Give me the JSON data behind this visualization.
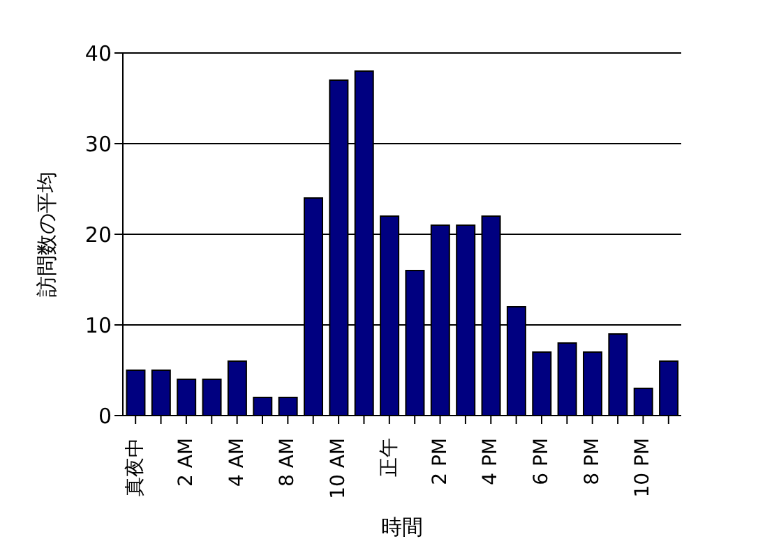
{
  "chart_data": {
    "type": "bar",
    "xlabel": "時間",
    "ylabel": "訪問数の平均",
    "categories": [
      "真夜中",
      null,
      "2 AM",
      null,
      "4 AM",
      null,
      "8 AM",
      null,
      "10 AM",
      null,
      "正午",
      null,
      "2 PM",
      null,
      "4 PM",
      null,
      "6 PM",
      null,
      "8 PM",
      null,
      "10 PM",
      null
    ],
    "values": [
      5,
      5,
      4,
      4,
      6,
      2,
      2,
      24,
      37,
      38,
      22,
      16,
      21,
      21,
      22,
      12,
      7,
      8,
      7,
      9,
      3,
      6
    ],
    "color": "#000080",
    "ylim": [
      0,
      40
    ],
    "yticks": [
      0,
      10,
      20,
      30,
      40
    ],
    "grid": "y"
  }
}
